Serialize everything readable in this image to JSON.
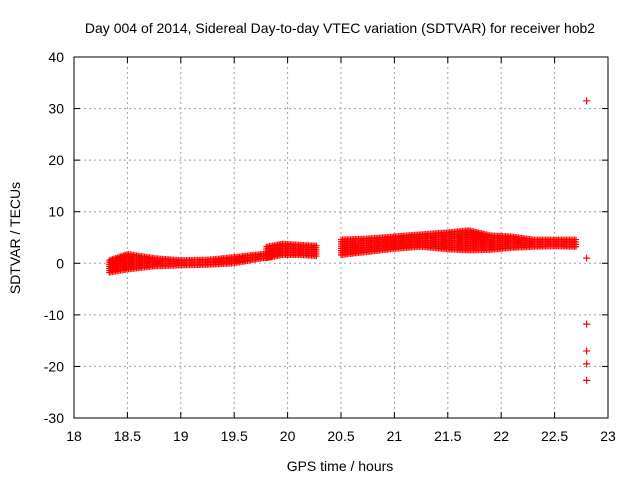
{
  "chart_data": {
    "type": "scatter",
    "title": "Day 004 of 2014, Sidereal Day-to-day VTEC variation (SDTVAR) for receiver hob2",
    "xlabel": "GPS time / hours",
    "ylabel": "SDTVAR / TECUs",
    "xlim": [
      18,
      23
    ],
    "ylim": [
      -30,
      40
    ],
    "xticks": [
      "18",
      "18.5",
      "19",
      "19.5",
      "20",
      "20.5",
      "21",
      "21.5",
      "22",
      "22.5",
      "23"
    ],
    "yticks": [
      "-30",
      "-20",
      "-10",
      "0",
      "10",
      "20",
      "30",
      "40"
    ],
    "grid": true,
    "legend": "none",
    "marker": "plus",
    "color": "#ff0000",
    "bands": [
      {
        "x": [
          18.33,
          18.5,
          18.75,
          19.0,
          19.25,
          19.5,
          19.75,
          19.85
        ],
        "lower": [
          -1.8,
          -1.2,
          -0.6,
          -0.4,
          -0.3,
          0.0,
          0.9,
          1.2
        ],
        "upper": [
          0.6,
          1.8,
          1.0,
          0.6,
          0.7,
          1.2,
          1.8,
          2.0
        ]
      },
      {
        "x": [
          19.8,
          19.95,
          20.1,
          20.27
        ],
        "lower": [
          1.0,
          1.6,
          1.6,
          1.4
        ],
        "upper": [
          3.2,
          3.8,
          3.6,
          3.4
        ]
      },
      {
        "x": [
          20.5,
          20.75,
          21.0,
          21.25,
          21.5,
          21.7,
          21.9,
          22.1,
          22.3,
          22.5,
          22.7
        ],
        "lower": [
          1.6,
          2.2,
          2.8,
          3.2,
          2.7,
          2.5,
          2.6,
          3.0,
          3.2,
          3.3,
          3.2
        ],
        "upper": [
          4.6,
          4.8,
          5.2,
          5.6,
          6.0,
          6.4,
          5.4,
          5.2,
          4.6,
          4.6,
          4.6
        ]
      }
    ],
    "outliers": [
      {
        "x": 22.8,
        "y": 31.5
      },
      {
        "x": 22.8,
        "y": 1.0
      },
      {
        "x": 22.8,
        "y": -11.8
      },
      {
        "x": 22.8,
        "y": -17.0
      },
      {
        "x": 22.8,
        "y": -19.5
      },
      {
        "x": 22.8,
        "y": -22.7
      }
    ]
  }
}
